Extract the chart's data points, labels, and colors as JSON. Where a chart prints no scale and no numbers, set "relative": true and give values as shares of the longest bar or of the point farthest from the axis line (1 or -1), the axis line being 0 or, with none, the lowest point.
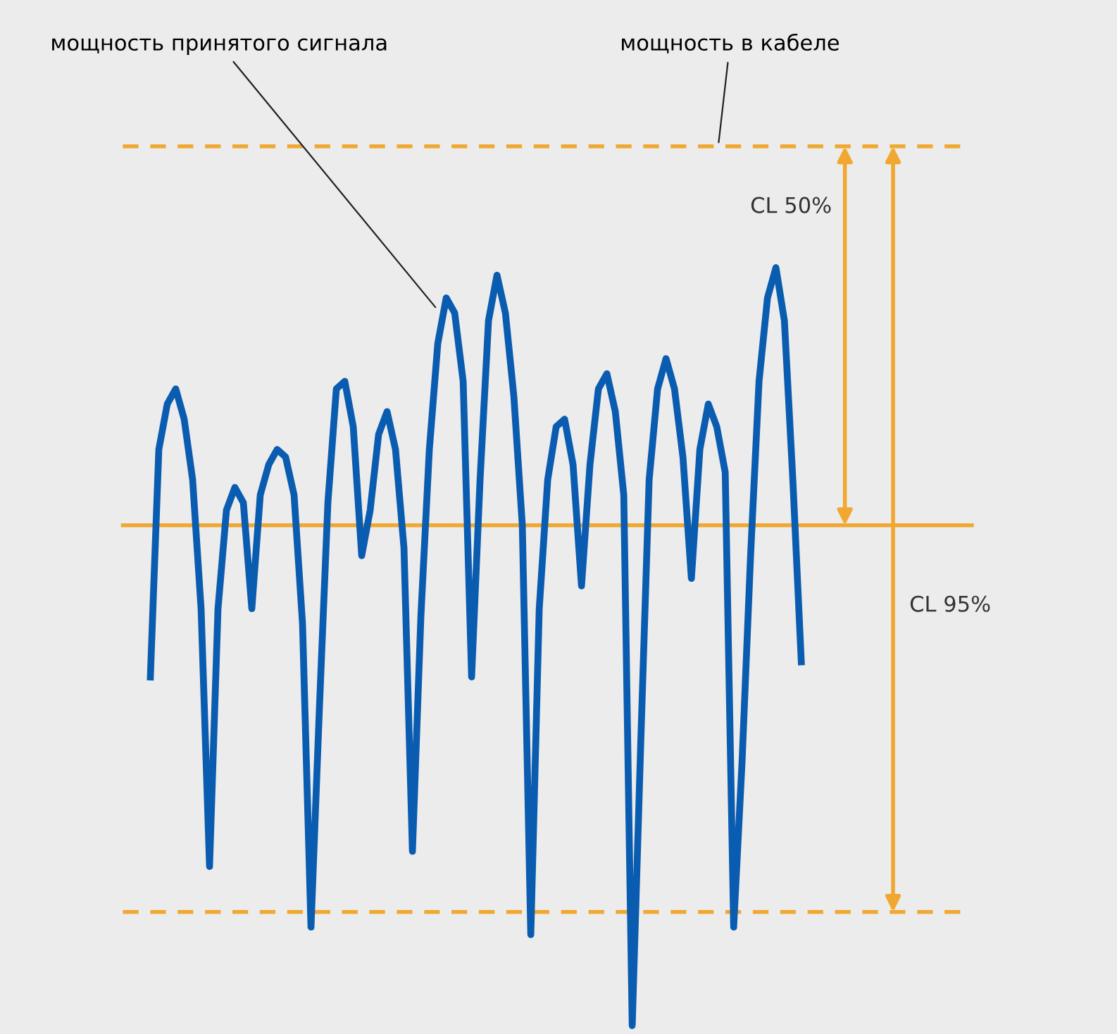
{
  "chart_data": {
    "type": "line",
    "relative": true,
    "legend": false,
    "marker": "none",
    "line_style": "solid",
    "categories": [
      null,
      null,
      null,
      null,
      null,
      null,
      null,
      null,
      null,
      null,
      null,
      null,
      null,
      null,
      null,
      null,
      null,
      null,
      null,
      null,
      null,
      null,
      null,
      null,
      null,
      null,
      null,
      null,
      null,
      null,
      null,
      null,
      null,
      null,
      null,
      null,
      null,
      null,
      null,
      null,
      null,
      null,
      null,
      null,
      null,
      null,
      null,
      null,
      null,
      null,
      null,
      null,
      null,
      null,
      null,
      null,
      null,
      null,
      null,
      null,
      null,
      null,
      null,
      null,
      null,
      null,
      null,
      null,
      null,
      null,
      null,
      null,
      null,
      null,
      null,
      null,
      null,
      null
    ],
    "series": [
      {
        "color": "#0a5cb0",
        "values": [
          0.46,
          0.76,
          0.82,
          0.84,
          0.8,
          0.72,
          0.55,
          0.21,
          0.55,
          0.68,
          0.71,
          0.69,
          0.55,
          0.7,
          0.74,
          0.76,
          0.75,
          0.7,
          0.53,
          0.13,
          0.42,
          0.69,
          0.84,
          0.85,
          0.79,
          0.62,
          0.68,
          0.78,
          0.81,
          0.76,
          0.63,
          0.23,
          0.54,
          0.76,
          0.9,
          0.96,
          0.94,
          0.85,
          0.46,
          0.72,
          0.93,
          0.99,
          0.94,
          0.83,
          0.66,
          0.12,
          0.55,
          0.72,
          0.79,
          0.8,
          0.74,
          0.58,
          0.74,
          0.84,
          0.86,
          0.81,
          0.7,
          0.0,
          0.37,
          0.72,
          0.84,
          0.88,
          0.84,
          0.75,
          0.59,
          0.76,
          0.82,
          0.79,
          0.73,
          0.13,
          0.35,
          0.62,
          0.85,
          0.96,
          1.0,
          0.93,
          0.72,
          0.48
        ]
      }
    ],
    "ref_lines": [
      {
        "axis": "y",
        "value": 1.16,
        "label": "мощность в кабеле",
        "color": "#f0a830",
        "line_style": "dashed"
      },
      {
        "axis": "y",
        "value": 0.66,
        "color": "#f0a830",
        "line_style": "solid"
      },
      {
        "axis": "y",
        "value": 0.15,
        "color": "#f0a830",
        "line_style": "dashed"
      }
    ],
    "annotations": [
      "мощность принятого сигнала",
      "CL 50%",
      "CL 95%"
    ]
  }
}
